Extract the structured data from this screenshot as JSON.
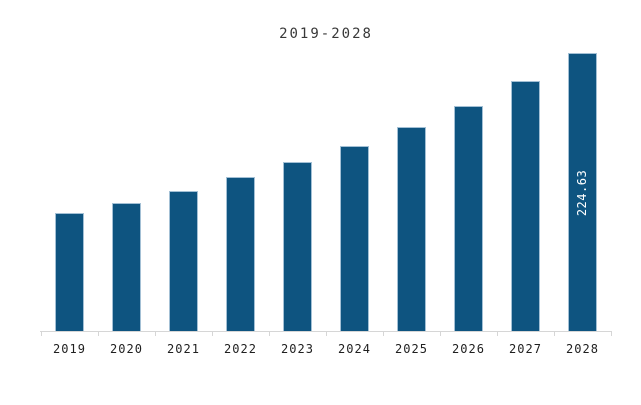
{
  "title": "2019-2028",
  "colors": {
    "bar_fill": "#0e5480",
    "bar_border": "#a3c0d5",
    "axis_line": "#d6d6d6",
    "title_text": "#383838",
    "axis_label_text": "#1f1f1f",
    "bar_value_label_text": "#ffffff",
    "background": "#ffffff"
  },
  "chart_data": {
    "type": "bar",
    "title": "2019-2028",
    "categories": [
      "2019",
      "2020",
      "2021",
      "2022",
      "2023",
      "2024",
      "2025",
      "2026",
      "2027",
      "2028"
    ],
    "values": [
      95.4,
      103.4,
      113.1,
      124.4,
      136.6,
      149.5,
      164.8,
      181.8,
      202.0,
      224.63
    ],
    "bar_labels": [
      "",
      "",
      "",
      "",
      "",
      "",
      "",
      "",
      "",
      "224.63"
    ],
    "xlabel": "",
    "ylabel": "",
    "ylim": [
      0,
      224.63
    ],
    "grid": false,
    "legend": null,
    "y_axis_visible": false,
    "x_axis_visible": true,
    "bar_label_rotation_deg": -90
  }
}
